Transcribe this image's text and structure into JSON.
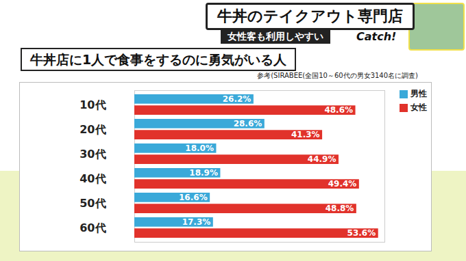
{
  "header": {
    "title": "牛丼のテイクアウト専門店",
    "subtitle": "女性客も利用しやすい",
    "logo": "Catch!"
  },
  "chart_data": {
    "type": "bar",
    "orientation": "horizontal",
    "title": "牛丼店に1人で食事をするのに勇気がいる人",
    "subtitle": "参考(SIRABEE(全国10～60代の男女3140名に調査)",
    "categories": [
      "10代",
      "20代",
      "30代",
      "40代",
      "50代",
      "60代"
    ],
    "series": [
      {
        "name": "男性",
        "color": "#3aa9d9",
        "values": [
          26.2,
          28.6,
          18.0,
          18.9,
          16.6,
          17.3
        ],
        "value_labels": [
          "26.2%",
          "28.6%",
          "18.0%",
          "18.9%",
          "16.6%",
          "17.3%"
        ]
      },
      {
        "name": "女性",
        "color": "#e1322b",
        "values": [
          48.6,
          41.3,
          44.9,
          49.4,
          48.8,
          53.6
        ],
        "value_labels": [
          "48.6%",
          "41.3%",
          "44.9%",
          "49.4%",
          "48.8%",
          "53.6%"
        ]
      }
    ],
    "xlim": [
      0,
      55
    ],
    "data_labels": true,
    "tick_labels": "y",
    "grid": false,
    "legend": "top-right"
  }
}
